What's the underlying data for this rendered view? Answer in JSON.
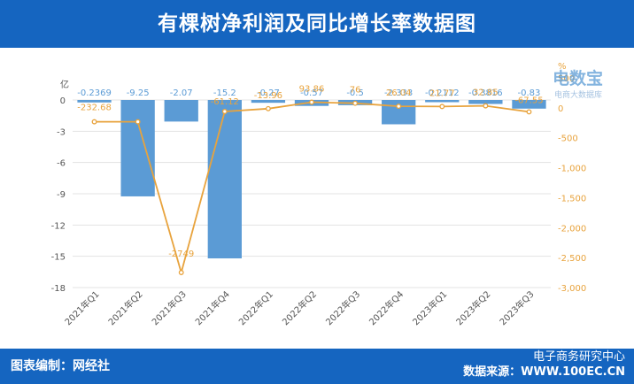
{
  "header": {
    "title": "有棵树净利润及同比增长率数据图"
  },
  "footer": {
    "editor": "图表编制：网经社",
    "org": "电子商务研究中心",
    "source": "数据来源：WWW.100EC.CN"
  },
  "watermark": {
    "text": "电数宝",
    "subtext": "电商大数据库"
  },
  "colors": {
    "header_bg": "#1565c0",
    "bar": "#5b9bd5",
    "line": "#e8a33d",
    "bar_label": "#5b9bd5",
    "line_label": "#e8a33d"
  },
  "chart_data": {
    "type": "bar",
    "categories": [
      "2021年Q1",
      "2021年Q2",
      "2021年Q3",
      "2021年Q4",
      "2022年Q1",
      "2022年Q2",
      "2022年Q3",
      "2022年Q4",
      "2023年Q1",
      "2023年Q2",
      "2023年Q3"
    ],
    "series": [
      {
        "type": "bar",
        "axis": "left",
        "values": [
          -0.2369,
          -9.25,
          -2.07,
          -15.2,
          -0.27,
          -0.57,
          -0.5,
          -2.333,
          -0.2112,
          -0.3816,
          -0.83
        ],
        "labels": [
          "-0.2369",
          "-9.25",
          "-2.07",
          "-15.2",
          "-0.27",
          "-0.57",
          "-0.5",
          "-2.333",
          "-0.2112",
          "-0.3816",
          "-0.83"
        ]
      },
      {
        "type": "line",
        "axis": "right",
        "values": [
          -232.68,
          -232.68,
          -2749,
          -61.12,
          -13.96,
          93.86,
          76,
          26.04,
          21.77,
          32.85,
          -67.55
        ],
        "labels": [
          "-232.68",
          "",
          "-2749",
          "-61.12",
          "-13.96",
          "93.86",
          "76",
          "26.04",
          "21.77",
          "32.85",
          "-67.55"
        ]
      }
    ],
    "left_axis": {
      "unit": "亿",
      "ylim": [
        -18,
        0
      ],
      "ticks": [
        0,
        -3,
        -6,
        -9,
        -12,
        -15,
        -18
      ],
      "tick_labels": [
        "0",
        "-3",
        "-6",
        "-9",
        "-12",
        "-15",
        "-18"
      ]
    },
    "right_axis": {
      "unit": "%",
      "ylim": [
        -3000,
        500
      ],
      "ticks": [
        500,
        0,
        -500,
        -1000,
        -1500,
        -2000,
        -2500,
        -3000
      ],
      "tick_labels": [
        "500",
        "0",
        "-500",
        "-1,000",
        "-1,500",
        "-2,000",
        "-2,500",
        "-3,000"
      ]
    },
    "grid": "horizontal",
    "legend": "none"
  }
}
